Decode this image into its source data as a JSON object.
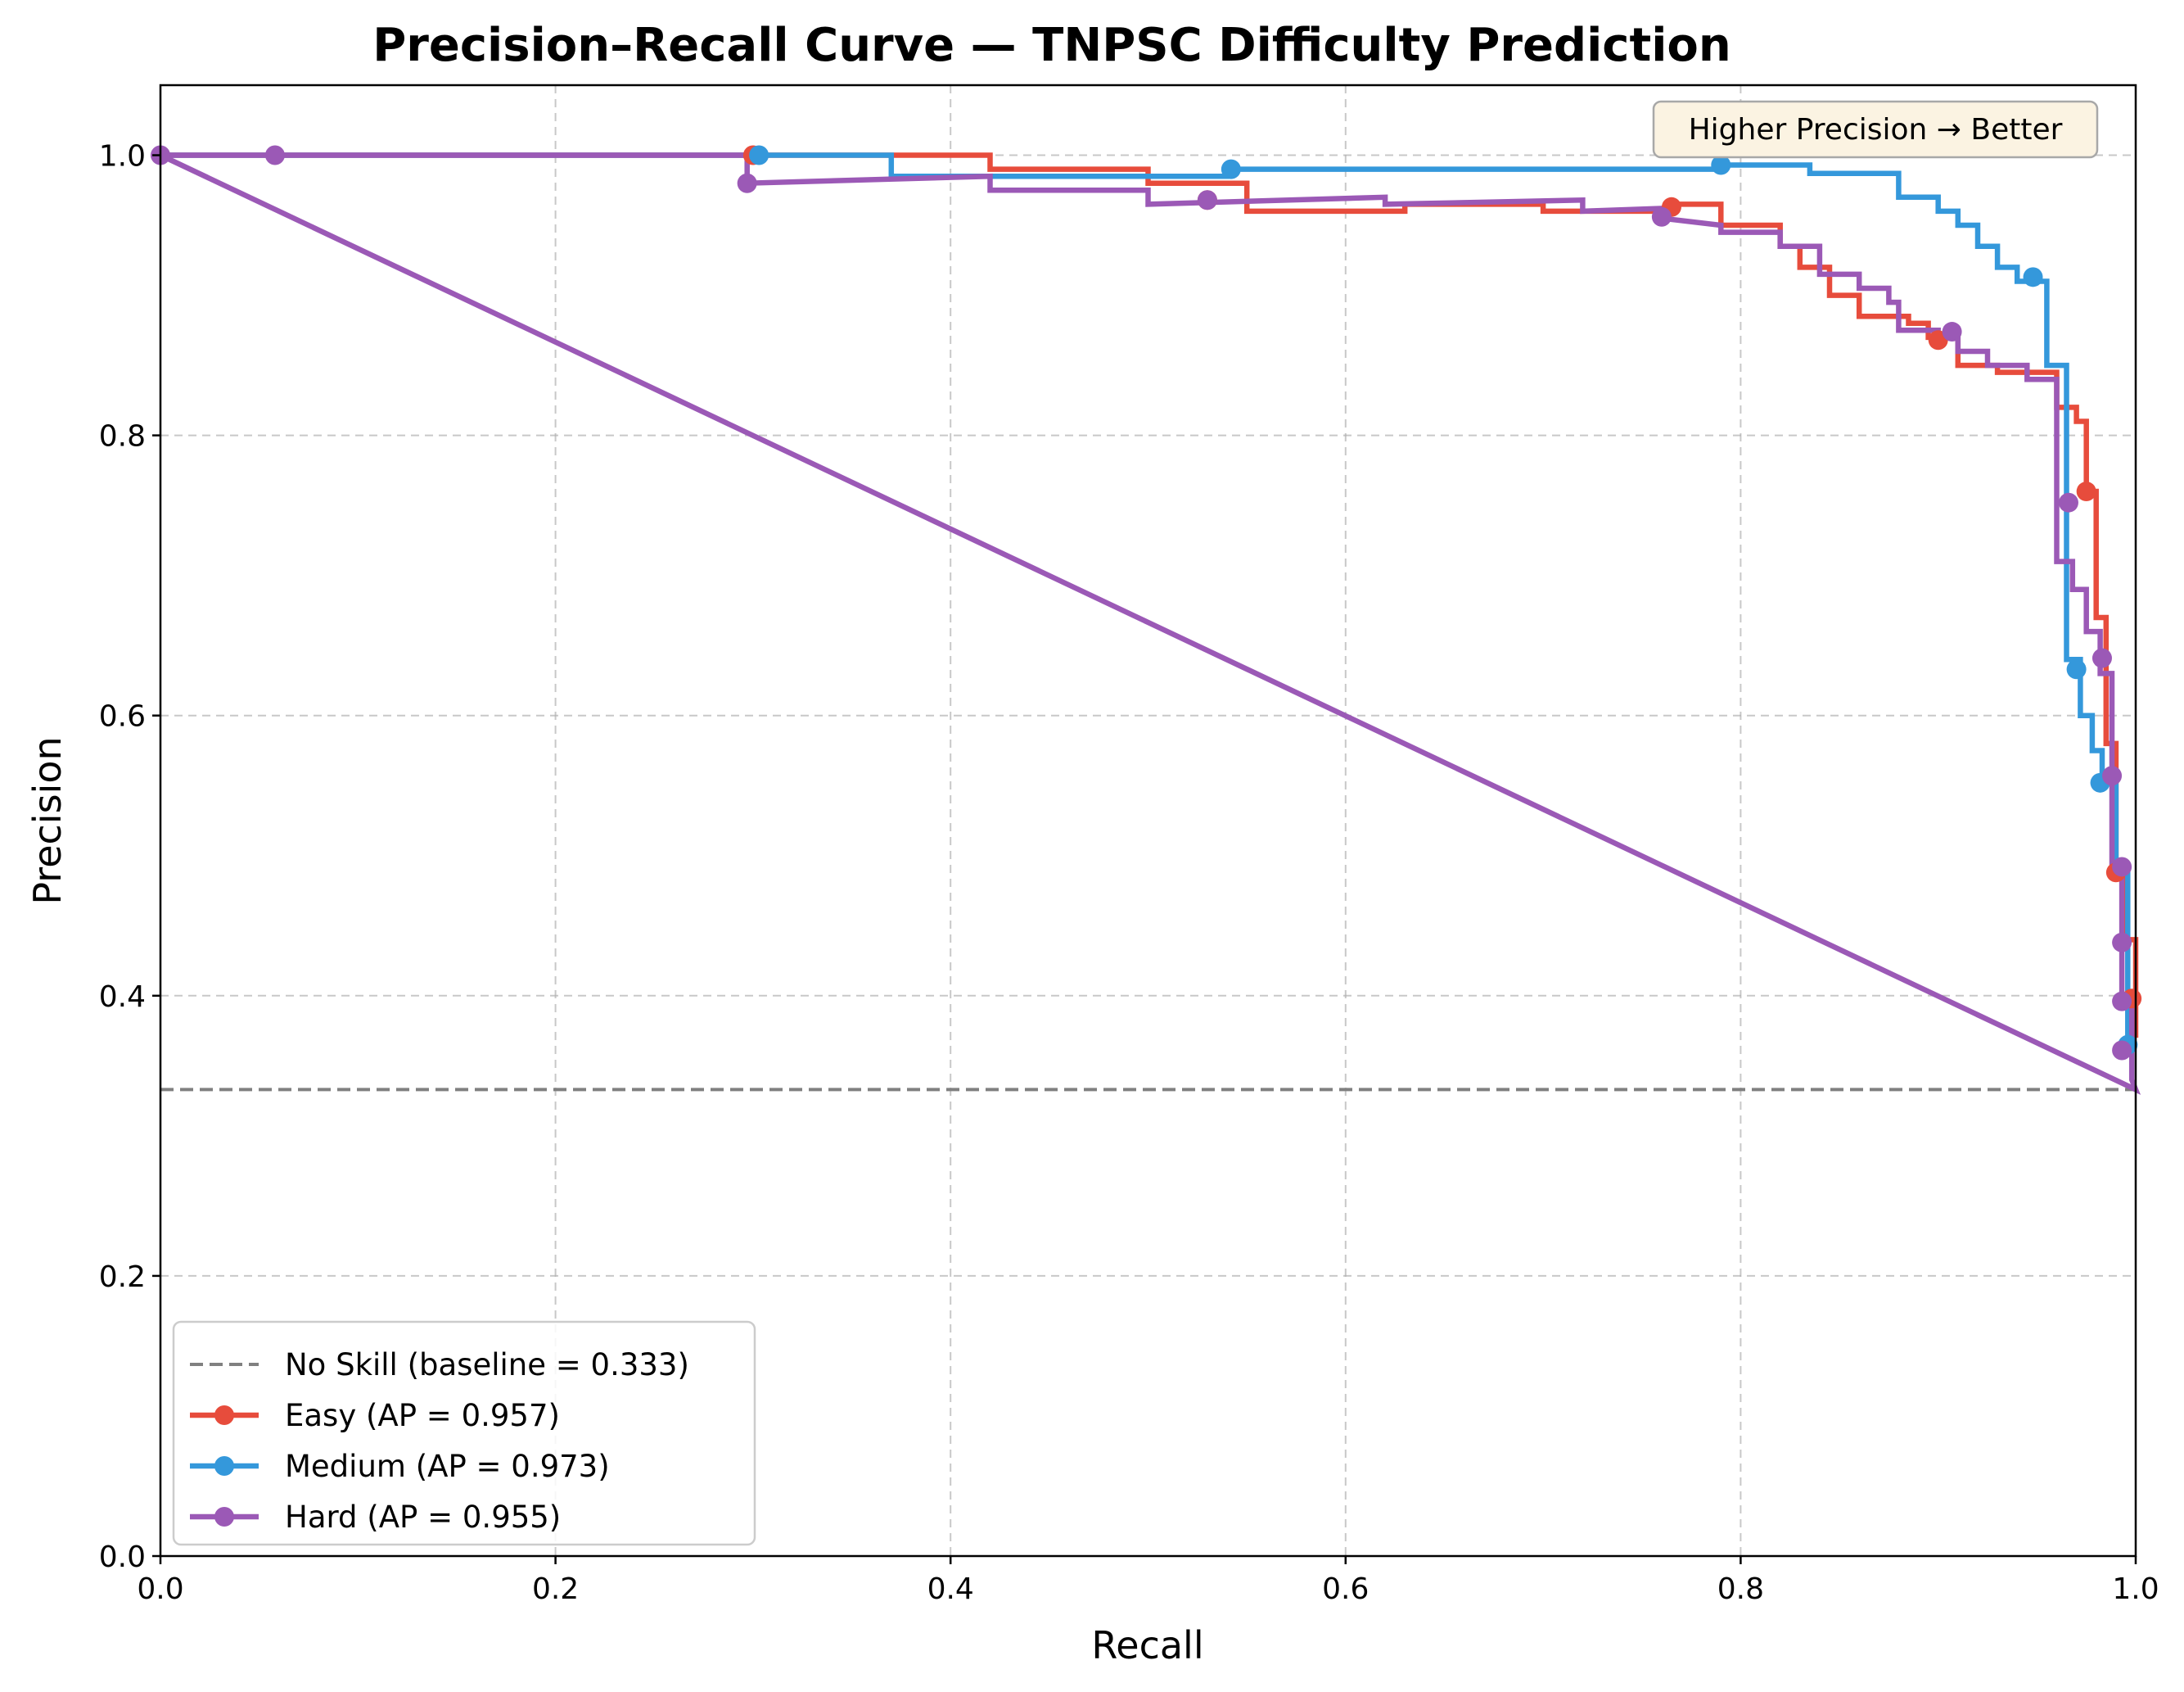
{
  "chart_data": {
    "type": "line",
    "title": "Precision–Recall Curve — TNPSC Difficulty Prediction",
    "xlabel": "Recall",
    "ylabel": "Precision",
    "xlim": [
      0,
      1
    ],
    "ylim": [
      0,
      1.05
    ],
    "xticks": [
      "0.0",
      "0.2",
      "0.4",
      "0.6",
      "0.8",
      "1.0"
    ],
    "yticks": [
      "0.0",
      "0.2",
      "0.4",
      "0.6",
      "0.8",
      "1.0"
    ],
    "grid": true,
    "legend_position": "lower-left",
    "annotation": "Higher Precision → Better",
    "baseline": {
      "name": "No Skill (baseline = 0.333)",
      "value": 0.333,
      "color": "#808080"
    },
    "series": [
      {
        "name": "Easy (AP = 0.957)",
        "color": "#e74c3c",
        "x": [
          0.0,
          0.3,
          0.3,
          0.42,
          0.42,
          0.5,
          0.5,
          0.55,
          0.55,
          0.63,
          0.63,
          0.7,
          0.7,
          0.765,
          0.765,
          0.79,
          0.79,
          0.82,
          0.82,
          0.83,
          0.83,
          0.845,
          0.845,
          0.86,
          0.86,
          0.885,
          0.885,
          0.895,
          0.895,
          0.91,
          0.91,
          0.93,
          0.93,
          0.96,
          0.96,
          0.97,
          0.97,
          0.975,
          0.975,
          0.98,
          0.98,
          0.985,
          0.985,
          0.99,
          0.99,
          0.995,
          0.995,
          1.0,
          1.0
        ],
        "y": [
          1.0,
          1.0,
          1.0,
          1.0,
          0.99,
          0.99,
          0.98,
          0.98,
          0.96,
          0.96,
          0.965,
          0.965,
          0.96,
          0.96,
          0.965,
          0.965,
          0.95,
          0.95,
          0.935,
          0.935,
          0.92,
          0.92,
          0.9,
          0.9,
          0.885,
          0.885,
          0.88,
          0.88,
          0.87,
          0.87,
          0.85,
          0.85,
          0.845,
          0.845,
          0.82,
          0.82,
          0.81,
          0.81,
          0.76,
          0.76,
          0.67,
          0.67,
          0.58,
          0.58,
          0.49,
          0.49,
          0.44,
          0.44,
          0.37
        ],
        "markers_x": [
          0.3,
          0.53,
          0.765,
          0.9,
          0.975,
          0.99,
          0.998
        ],
        "markers_y": [
          1.0,
          0.968,
          0.963,
          0.868,
          0.76,
          0.488,
          0.398
        ]
      },
      {
        "name": "Medium (AP = 0.973)",
        "color": "#3498db",
        "x": [
          0.0,
          0.303,
          0.303,
          0.37,
          0.37,
          0.54,
          0.54,
          0.79,
          0.79,
          0.835,
          0.835,
          0.88,
          0.88,
          0.9,
          0.9,
          0.91,
          0.91,
          0.92,
          0.92,
          0.93,
          0.93,
          0.94,
          0.94,
          0.955,
          0.955,
          0.965,
          0.965,
          0.972,
          0.972,
          0.978,
          0.978,
          0.983,
          0.983,
          0.99,
          0.99,
          0.996,
          0.996,
          1.0
        ],
        "y": [
          1.0,
          1.0,
          1.0,
          1.0,
          0.985,
          0.985,
          0.99,
          0.99,
          0.993,
          0.993,
          0.987,
          0.987,
          0.97,
          0.97,
          0.96,
          0.96,
          0.95,
          0.95,
          0.935,
          0.935,
          0.92,
          0.92,
          0.91,
          0.91,
          0.85,
          0.85,
          0.64,
          0.64,
          0.6,
          0.6,
          0.575,
          0.575,
          0.555,
          0.555,
          0.49,
          0.49,
          0.365,
          0.365
        ],
        "markers_x": [
          0.303,
          0.542,
          0.79,
          0.948,
          0.97,
          0.982,
          0.996
        ],
        "markers_y": [
          1.0,
          0.99,
          0.993,
          0.913,
          0.633,
          0.552,
          0.365
        ]
      },
      {
        "name": "Hard (AP = 0.955)",
        "color": "#9b59b6",
        "x": [
          0.0,
          0.297,
          0.297,
          0.42,
          0.42,
          0.5,
          0.5,
          0.62,
          0.62,
          0.72,
          0.72,
          0.76,
          0.76,
          0.79,
          0.79,
          0.82,
          0.82,
          0.84,
          0.84,
          0.86,
          0.86,
          0.875,
          0.875,
          0.88,
          0.88,
          0.9,
          0.9,
          0.91,
          0.91,
          0.925,
          0.925,
          0.945,
          0.945,
          0.96,
          0.96,
          0.968,
          0.968,
          0.975,
          0.975,
          0.982,
          0.982,
          0.988,
          0.988,
          0.993,
          0.993,
          0.998,
          0.998,
          1.0,
          0.0
        ],
        "y": [
          1.0,
          1.0,
          0.98,
          0.985,
          0.975,
          0.975,
          0.965,
          0.97,
          0.965,
          0.968,
          0.96,
          0.962,
          0.955,
          0.95,
          0.945,
          0.945,
          0.935,
          0.935,
          0.915,
          0.915,
          0.905,
          0.905,
          0.895,
          0.895,
          0.875,
          0.875,
          0.87,
          0.87,
          0.86,
          0.86,
          0.85,
          0.85,
          0.84,
          0.84,
          0.71,
          0.71,
          0.69,
          0.69,
          0.66,
          0.66,
          0.63,
          0.63,
          0.49,
          0.49,
          0.4,
          0.4,
          0.34,
          0.333,
          1.0
        ],
        "markers_x": [
          0.0,
          0.058,
          0.297,
          0.53,
          0.76,
          0.907,
          0.966,
          0.983,
          0.988,
          0.993,
          0.993,
          0.993,
          0.993
        ],
        "markers_y": [
          1.0,
          1.0,
          0.98,
          0.968,
          0.956,
          0.874,
          0.752,
          0.641,
          0.557,
          0.492,
          0.438,
          0.396,
          0.361
        ]
      }
    ]
  }
}
